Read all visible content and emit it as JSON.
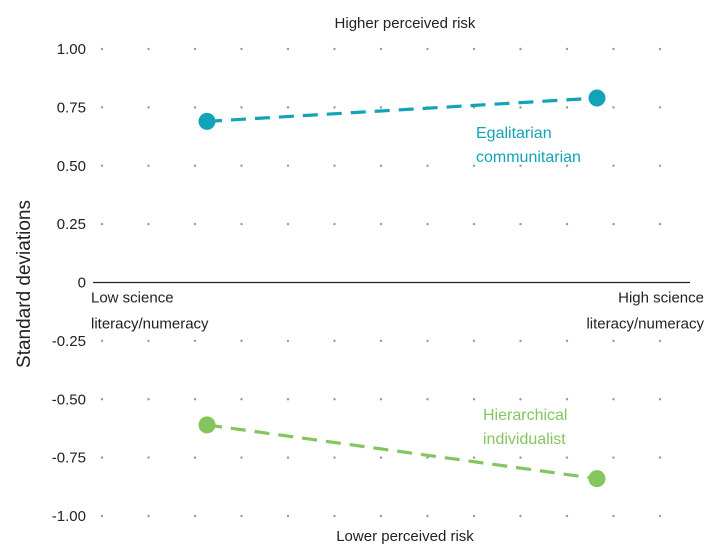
{
  "chart_data": {
    "type": "line",
    "top_note": "Higher perceived risk",
    "bottom_note": "Lower perceived risk",
    "ylabel": "Standard deviations",
    "x_categories": [
      [
        "Low science",
        "literacy/numeracy"
      ],
      [
        "High science",
        "literacy/numeracy"
      ]
    ],
    "y_ticks": [
      {
        "value": 1.0,
        "label": "1.00"
      },
      {
        "value": 0.75,
        "label": "0.75"
      },
      {
        "value": 0.5,
        "label": "0.50"
      },
      {
        "value": 0.25,
        "label": "0.25"
      },
      {
        "value": 0,
        "label": "0"
      },
      {
        "value": -0.25,
        "label": "-0.25"
      },
      {
        "value": -0.5,
        "label": "-0.50"
      },
      {
        "value": -0.75,
        "label": "-0.75"
      },
      {
        "value": -1.0,
        "label": "-1.00"
      }
    ],
    "ylim": [
      -1.0,
      1.0
    ],
    "grid": "dotted",
    "series": [
      {
        "name": "Egalitarian communitarian",
        "label_lines": [
          "Egalitarian",
          "communitarian"
        ],
        "color": "#13a3b8",
        "values": [
          0.69,
          0.79
        ]
      },
      {
        "name": "Hierarchical individualist",
        "label_lines": [
          "Hierarchical",
          "individualist"
        ],
        "color": "#84c560",
        "values": [
          -0.61,
          -0.84
        ]
      }
    ]
  }
}
